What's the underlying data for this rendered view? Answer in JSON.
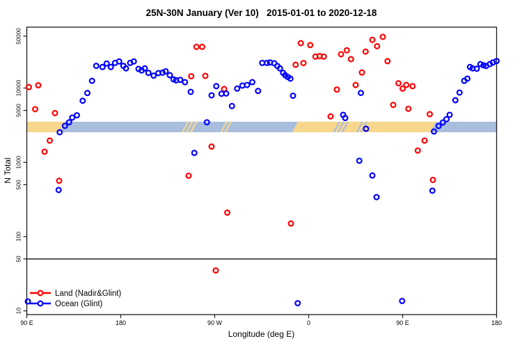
{
  "title": "25N-30N January (Ver 10)   2015-01-01 to 2020-12-18",
  "colors": {
    "point_land": "#FF0000",
    "point_ocean": "#0000FF",
    "band_land": "#F6D78C",
    "band_ocean": "#A9BEDD",
    "frame": "#1A1A1A",
    "reference_line": "#111111"
  },
  "chart_data": {
    "type": "scatter",
    "title": "25N-30N January (Ver 10)   2015-01-01 to 2020-12-18",
    "xlabel": "Longitude (deg E)",
    "ylabel": "N Total",
    "x_axis": {
      "range": [
        90,
        540
      ],
      "ticks": [
        90,
        180,
        270,
        360,
        450,
        540
      ],
      "tick_labels": [
        "90 E",
        "180",
        "90 W",
        "0",
        "90 E",
        "180"
      ]
    },
    "y_axis": {
      "scale": "log",
      "range": [
        10,
        60000
      ],
      "ticks": [
        50000,
        10000,
        5000,
        1000,
        500,
        100,
        50,
        10
      ],
      "tick_labels": [
        "50000",
        "10000",
        "5000",
        "1000",
        "500",
        "100",
        "50",
        "10"
      ]
    },
    "reference_line_y": 50,
    "band": {
      "value_top": 3520,
      "value_bottom": 2540,
      "segments": [
        {
          "color_key": "band_land",
          "from": 90,
          "to": 124.5
        },
        {
          "color_key": "band_ocean",
          "from": 124.5,
          "to": 347
        },
        {
          "color_key": "band_land",
          "from": 347,
          "to": 479
        },
        {
          "color_key": "band_ocean",
          "from": 479,
          "to": 540
        }
      ],
      "hatches": [
        {
          "color_key": "band_land",
          "from": 241,
          "to": 252
        },
        {
          "color_key": "band_land",
          "from": 278,
          "to": 283
        },
        {
          "color_key": "band_ocean",
          "from": 386,
          "to": 396
        },
        {
          "color_key": "band_ocean",
          "from": 408,
          "to": 412
        }
      ]
    },
    "legend": {
      "position": "bottom-left"
    },
    "series": [
      {
        "name": "Land (Nadir&Glint)",
        "color_key": "point_land",
        "points": [
          [
            92,
            10300
          ],
          [
            101,
            10900
          ],
          [
            98,
            5200
          ],
          [
            117,
            4600
          ],
          [
            112,
            1960
          ],
          [
            107,
            1390
          ],
          [
            121,
            565
          ],
          [
            245,
            660
          ],
          [
            247.5,
            14400
          ],
          [
            252.5,
            35900
          ],
          [
            258,
            35900
          ],
          [
            261,
            14600
          ],
          [
            267,
            1630
          ],
          [
            271,
            35
          ],
          [
            279,
            9700
          ],
          [
            282,
            210
          ],
          [
            343,
            150
          ],
          [
            347.5,
            20600
          ],
          [
            352.5,
            40200
          ],
          [
            355,
            21700
          ],
          [
            361.5,
            37900
          ],
          [
            366.5,
            26500
          ],
          [
            370.5,
            26900
          ],
          [
            374.5,
            26500
          ],
          [
            381,
            4150
          ],
          [
            387,
            9550
          ],
          [
            391,
            28500
          ],
          [
            396.5,
            32200
          ],
          [
            400.5,
            24500
          ],
          [
            405,
            11000
          ],
          [
            411,
            16200
          ],
          [
            414.5,
            31000
          ],
          [
            421,
            44600
          ],
          [
            425.5,
            36600
          ],
          [
            431,
            48900
          ],
          [
            435.5,
            23000
          ],
          [
            441,
            5930
          ],
          [
            446,
            11600
          ],
          [
            450,
            9840
          ],
          [
            453.5,
            11000
          ],
          [
            459.5,
            10600
          ],
          [
            455.5,
            5260
          ],
          [
            464.5,
            1440
          ],
          [
            471,
            1960
          ],
          [
            476,
            4450
          ],
          [
            479,
            580
          ]
        ]
      },
      {
        "name": "Ocean (Glint)",
        "color_key": "point_ocean",
        "points": [
          [
            91,
            13.4
          ],
          [
            120.5,
            424
          ],
          [
            121.5,
            2540
          ],
          [
            126.5,
            3100
          ],
          [
            130.5,
            3460
          ],
          [
            133.5,
            4000
          ],
          [
            138,
            4300
          ],
          [
            143.5,
            6750
          ],
          [
            148,
            8570
          ],
          [
            152.5,
            12500
          ],
          [
            156.5,
            19900
          ],
          [
            162.5,
            19200
          ],
          [
            166.5,
            21400
          ],
          [
            170.5,
            19200
          ],
          [
            174.5,
            21800
          ],
          [
            178.5,
            22800
          ],
          [
            182.5,
            19900
          ],
          [
            185,
            18400
          ],
          [
            189,
            21800
          ],
          [
            192.5,
            22800
          ],
          [
            197,
            18100
          ],
          [
            200,
            17250
          ],
          [
            203,
            18400
          ],
          [
            206.5,
            16000
          ],
          [
            211.5,
            14700
          ],
          [
            216,
            15900
          ],
          [
            220,
            16100
          ],
          [
            223,
            16800
          ],
          [
            227,
            14900
          ],
          [
            230.5,
            13100
          ],
          [
            233,
            12700
          ],
          [
            237,
            12900
          ],
          [
            241.5,
            12000
          ],
          [
            247,
            8890
          ],
          [
            250.5,
            1340
          ],
          [
            262.5,
            3460
          ],
          [
            267,
            7980
          ],
          [
            271.5,
            10600
          ],
          [
            276.5,
            8380
          ],
          [
            281,
            8440
          ],
          [
            286.5,
            5730
          ],
          [
            291.5,
            9840
          ],
          [
            296.5,
            10800
          ],
          [
            301,
            11000
          ],
          [
            306,
            12000
          ],
          [
            311.5,
            9140
          ],
          [
            315.5,
            21800
          ],
          [
            320,
            21800
          ],
          [
            323,
            22100
          ],
          [
            327,
            21600
          ],
          [
            330,
            19800
          ],
          [
            332.5,
            18400
          ],
          [
            335.5,
            16000
          ],
          [
            337.5,
            14900
          ],
          [
            340,
            14100
          ],
          [
            342.5,
            13400
          ],
          [
            345,
            7880
          ],
          [
            349.5,
            12.7
          ],
          [
            393,
            4360
          ],
          [
            395,
            3950
          ],
          [
            408.5,
            1050
          ],
          [
            410,
            8600
          ],
          [
            415,
            2830
          ],
          [
            421,
            665
          ],
          [
            425,
            340
          ],
          [
            449.5,
            13.6
          ],
          [
            478.5,
            415
          ],
          [
            480,
            2600
          ],
          [
            484.5,
            3090
          ],
          [
            488.5,
            3440
          ],
          [
            492,
            3810
          ],
          [
            495,
            4360
          ],
          [
            500.5,
            6850
          ],
          [
            504.5,
            8700
          ],
          [
            509,
            12500
          ],
          [
            512,
            13400
          ],
          [
            514.5,
            19200
          ],
          [
            517,
            18400
          ],
          [
            521,
            18200
          ],
          [
            524.5,
            21000
          ],
          [
            527.5,
            20200
          ],
          [
            530,
            19800
          ],
          [
            533.5,
            21000
          ],
          [
            536.5,
            22100
          ],
          [
            540,
            23100
          ]
        ]
      }
    ]
  }
}
